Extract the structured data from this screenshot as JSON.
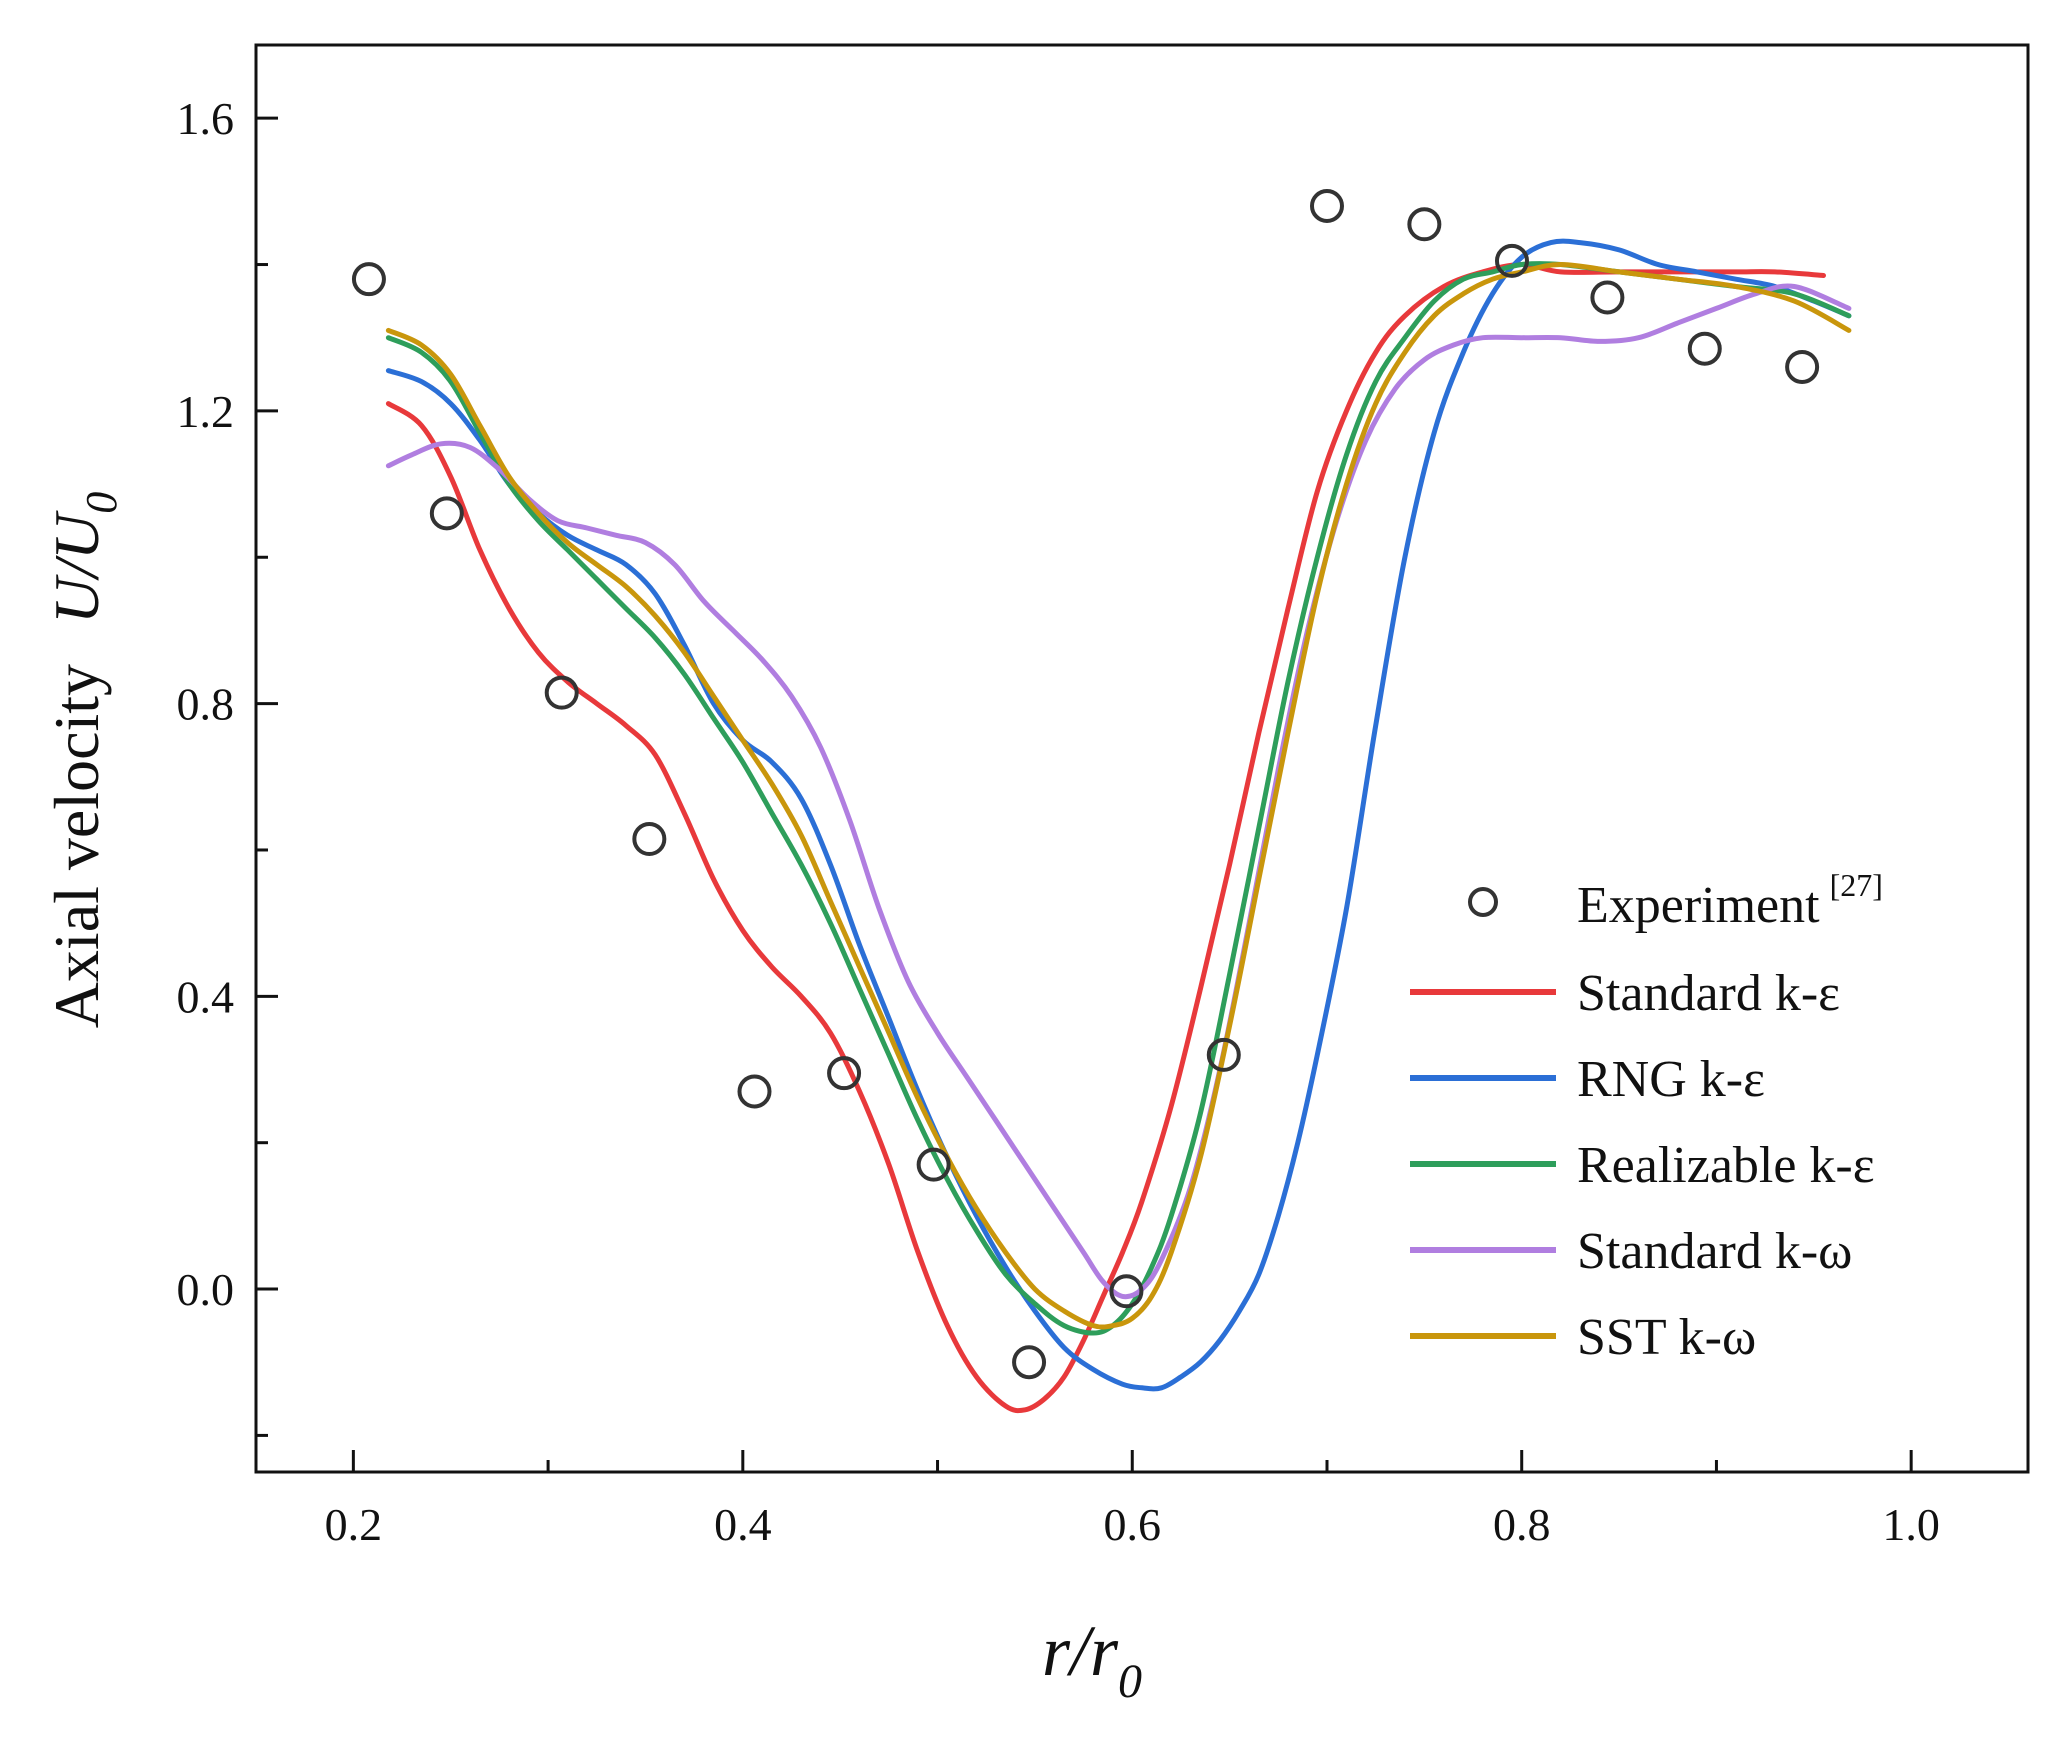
{
  "chart_data": {
    "type": "line",
    "title": "",
    "xlabel": {
      "main": "r/r",
      "sub": "0"
    },
    "ylabel": {
      "prefix": "Axial velocity",
      "main": "U/U",
      "sub": "0"
    },
    "xlim": [
      0.15,
      1.06
    ],
    "ylim": [
      -0.25,
      1.7
    ],
    "xticks": [
      0.2,
      0.4,
      0.6,
      0.8,
      1.0
    ],
    "xtick_labels": [
      "0.2",
      "0.4",
      "0.6",
      "0.8",
      "1.0"
    ],
    "yticks": [
      0.0,
      0.4,
      0.8,
      1.2,
      1.6
    ],
    "ytick_labels": [
      "0.0",
      "0.4",
      "0.8",
      "1.2",
      "1.6"
    ],
    "grid": false,
    "legend_position": "bottom-right",
    "experiment": {
      "name": "Experiment",
      "ref": "[27]",
      "marker": "open-circle",
      "color": "#333333",
      "x": [
        0.208,
        0.248,
        0.307,
        0.352,
        0.406,
        0.452,
        0.498,
        0.547,
        0.597,
        0.647,
        0.7,
        0.75,
        0.795,
        0.844,
        0.894,
        0.944
      ],
      "y": [
        1.38,
        1.06,
        0.815,
        0.615,
        0.27,
        0.295,
        0.17,
        -0.1,
        -0.003,
        0.32,
        1.48,
        1.455,
        1.405,
        1.355,
        1.285,
        1.26
      ]
    },
    "series": [
      {
        "name": "Standard k-ε",
        "color": "#e8393b",
        "x": [
          0.218,
          0.235,
          0.25,
          0.265,
          0.28,
          0.295,
          0.31,
          0.325,
          0.34,
          0.355,
          0.37,
          0.385,
          0.4,
          0.415,
          0.43,
          0.445,
          0.46,
          0.475,
          0.49,
          0.505,
          0.52,
          0.535,
          0.545,
          0.555,
          0.565,
          0.575,
          0.585,
          0.595,
          0.605,
          0.62,
          0.635,
          0.65,
          0.665,
          0.68,
          0.695,
          0.71,
          0.725,
          0.74,
          0.76,
          0.78,
          0.8,
          0.82,
          0.85,
          0.88,
          0.91,
          0.93,
          0.955
        ],
        "y": [
          1.21,
          1.18,
          1.11,
          1.01,
          0.93,
          0.87,
          0.83,
          0.8,
          0.77,
          0.73,
          0.65,
          0.56,
          0.49,
          0.44,
          0.4,
          0.35,
          0.27,
          0.17,
          0.05,
          -0.05,
          -0.12,
          -0.16,
          -0.165,
          -0.15,
          -0.12,
          -0.07,
          -0.01,
          0.05,
          0.12,
          0.25,
          0.41,
          0.58,
          0.76,
          0.93,
          1.09,
          1.2,
          1.28,
          1.33,
          1.37,
          1.39,
          1.4,
          1.39,
          1.39,
          1.39,
          1.39,
          1.39,
          1.385
        ]
      },
      {
        "name": "RNG k-ε",
        "color": "#2b6fd6",
        "x": [
          0.218,
          0.235,
          0.25,
          0.265,
          0.28,
          0.295,
          0.31,
          0.325,
          0.34,
          0.355,
          0.37,
          0.385,
          0.4,
          0.415,
          0.43,
          0.445,
          0.46,
          0.475,
          0.49,
          0.505,
          0.52,
          0.535,
          0.55,
          0.565,
          0.58,
          0.595,
          0.605,
          0.615,
          0.625,
          0.635,
          0.645,
          0.655,
          0.665,
          0.675,
          0.685,
          0.695,
          0.71,
          0.725,
          0.74,
          0.755,
          0.77,
          0.785,
          0.8,
          0.815,
          0.83,
          0.85,
          0.87,
          0.89,
          0.91,
          0.93,
          0.95,
          0.968
        ],
        "y": [
          1.255,
          1.24,
          1.21,
          1.16,
          1.1,
          1.06,
          1.03,
          1.01,
          0.99,
          0.95,
          0.88,
          0.8,
          0.75,
          0.72,
          0.67,
          0.58,
          0.47,
          0.37,
          0.27,
          0.18,
          0.1,
          0.03,
          -0.03,
          -0.08,
          -0.11,
          -0.13,
          -0.135,
          -0.135,
          -0.12,
          -0.1,
          -0.07,
          -0.03,
          0.02,
          0.1,
          0.2,
          0.32,
          0.52,
          0.77,
          1.0,
          1.17,
          1.28,
          1.36,
          1.41,
          1.43,
          1.43,
          1.42,
          1.4,
          1.39,
          1.38,
          1.37,
          1.35,
          1.33
        ]
      },
      {
        "name": "Realizable k-ε",
        "color": "#2e9e5b",
        "x": [
          0.218,
          0.235,
          0.25,
          0.265,
          0.28,
          0.295,
          0.31,
          0.325,
          0.34,
          0.355,
          0.37,
          0.385,
          0.4,
          0.415,
          0.43,
          0.445,
          0.46,
          0.475,
          0.49,
          0.505,
          0.52,
          0.535,
          0.55,
          0.565,
          0.58,
          0.59,
          0.6,
          0.61,
          0.62,
          0.635,
          0.65,
          0.665,
          0.68,
          0.695,
          0.71,
          0.725,
          0.74,
          0.755,
          0.77,
          0.785,
          0.8,
          0.82,
          0.85,
          0.88,
          0.91,
          0.94,
          0.968
        ],
        "y": [
          1.3,
          1.28,
          1.24,
          1.17,
          1.1,
          1.05,
          1.01,
          0.97,
          0.93,
          0.89,
          0.84,
          0.78,
          0.72,
          0.65,
          0.58,
          0.5,
          0.41,
          0.32,
          0.23,
          0.15,
          0.08,
          0.02,
          -0.02,
          -0.05,
          -0.06,
          -0.05,
          -0.02,
          0.03,
          0.1,
          0.24,
          0.43,
          0.63,
          0.83,
          1.0,
          1.14,
          1.24,
          1.3,
          1.35,
          1.38,
          1.39,
          1.4,
          1.4,
          1.39,
          1.38,
          1.37,
          1.36,
          1.33
        ]
      },
      {
        "name": "Standard k-ω",
        "color": "#b07ee0",
        "x": [
          0.218,
          0.23,
          0.245,
          0.26,
          0.275,
          0.29,
          0.305,
          0.32,
          0.335,
          0.35,
          0.365,
          0.38,
          0.395,
          0.41,
          0.425,
          0.44,
          0.455,
          0.47,
          0.485,
          0.5,
          0.515,
          0.53,
          0.545,
          0.56,
          0.575,
          0.585,
          0.595,
          0.605,
          0.615,
          0.63,
          0.645,
          0.66,
          0.675,
          0.69,
          0.705,
          0.72,
          0.735,
          0.75,
          0.765,
          0.78,
          0.8,
          0.82,
          0.84,
          0.86,
          0.88,
          0.9,
          0.92,
          0.94,
          0.968
        ],
        "y": [
          1.125,
          1.14,
          1.155,
          1.15,
          1.12,
          1.08,
          1.05,
          1.04,
          1.03,
          1.02,
          0.99,
          0.94,
          0.9,
          0.86,
          0.81,
          0.74,
          0.64,
          0.52,
          0.42,
          0.35,
          0.29,
          0.23,
          0.17,
          0.11,
          0.05,
          0.01,
          -0.01,
          0.0,
          0.04,
          0.14,
          0.3,
          0.5,
          0.71,
          0.9,
          1.05,
          1.16,
          1.23,
          1.27,
          1.29,
          1.3,
          1.3,
          1.3,
          1.295,
          1.3,
          1.32,
          1.34,
          1.36,
          1.37,
          1.34
        ]
      },
      {
        "name": "SST k-ω",
        "color": "#c9960c",
        "x": [
          0.218,
          0.235,
          0.25,
          0.265,
          0.28,
          0.295,
          0.31,
          0.325,
          0.34,
          0.355,
          0.37,
          0.385,
          0.4,
          0.415,
          0.43,
          0.445,
          0.46,
          0.475,
          0.49,
          0.505,
          0.52,
          0.535,
          0.55,
          0.565,
          0.58,
          0.59,
          0.6,
          0.61,
          0.62,
          0.635,
          0.65,
          0.665,
          0.68,
          0.695,
          0.71,
          0.725,
          0.74,
          0.755,
          0.77,
          0.785,
          0.8,
          0.82,
          0.85,
          0.88,
          0.91,
          0.94,
          0.968
        ],
        "y": [
          1.31,
          1.29,
          1.25,
          1.18,
          1.11,
          1.06,
          1.02,
          0.99,
          0.96,
          0.92,
          0.87,
          0.81,
          0.75,
          0.69,
          0.62,
          0.53,
          0.44,
          0.35,
          0.26,
          0.18,
          0.11,
          0.05,
          0.0,
          -0.03,
          -0.05,
          -0.05,
          -0.04,
          -0.01,
          0.05,
          0.18,
          0.36,
          0.56,
          0.76,
          0.95,
          1.1,
          1.21,
          1.28,
          1.33,
          1.36,
          1.38,
          1.39,
          1.4,
          1.39,
          1.38,
          1.37,
          1.35,
          1.31
        ]
      }
    ]
  }
}
